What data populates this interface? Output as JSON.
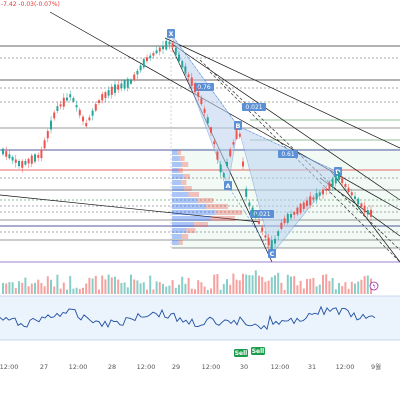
{
  "header": {
    "text": "-7.42  -0.03(-0.07%)"
  },
  "chart_data": {
    "type": "candlestick",
    "x_ticks": [
      "12:00",
      "27",
      "12:00",
      "28",
      "12:00",
      "29",
      "12:00",
      "30",
      "12:00",
      "31",
      "12:00",
      "9월"
    ],
    "pattern_points": [
      {
        "label": "X",
        "x": 171,
        "y": 34
      },
      {
        "label": "A",
        "x": 228,
        "y": 186
      },
      {
        "label": "B",
        "x": 238,
        "y": 126
      },
      {
        "label": "C",
        "x": 272,
        "y": 254
      },
      {
        "label": "D",
        "x": 338,
        "y": 172
      }
    ],
    "fib_labels": [
      {
        "text": "0.76",
        "x": 204,
        "y": 88
      },
      {
        "text": "0.021",
        "x": 254,
        "y": 108
      },
      {
        "text": "0.61",
        "x": 288,
        "y": 155
      },
      {
        "text": "0.021",
        "x": 262,
        "y": 215
      }
    ],
    "signals": [
      {
        "text": "Sell",
        "x": 241,
        "y": 354
      },
      {
        "text": "Sell",
        "x": 258,
        "y": 352
      }
    ],
    "colors": {
      "up": "#26a69a",
      "down": "#ef5350",
      "pattern": "#5b8fd6",
      "pattern_fill": "#bcd3f0",
      "volume_profile": "#2962ff",
      "oscillator": "#1e4fa0",
      "signal": "#1b9e4b"
    }
  }
}
